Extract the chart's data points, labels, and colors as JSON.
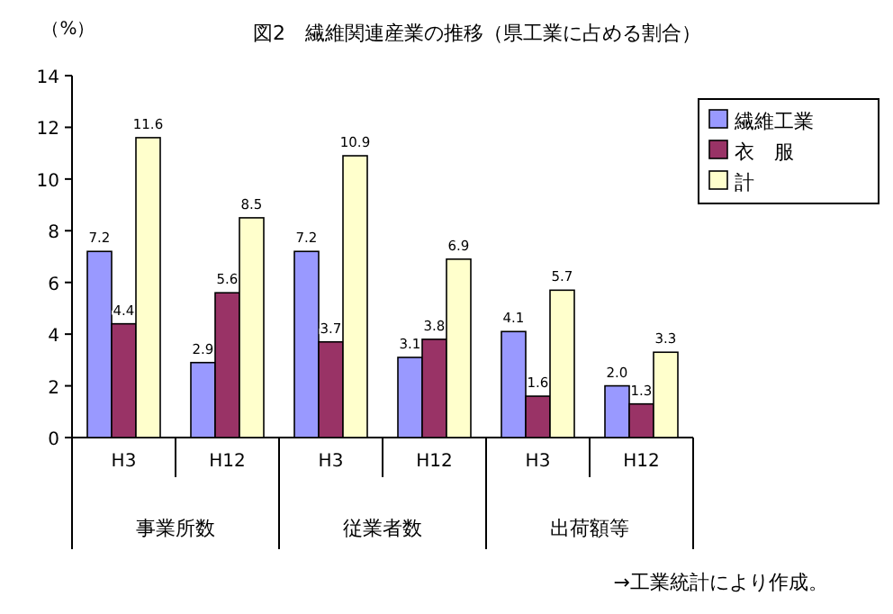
{
  "chart_data": {
    "type": "bar",
    "title": "図2　繊維関連産業の推移（県工業に占める割合）",
    "ylabel": "（%）",
    "categories": [
      "H3",
      "H12",
      "H3",
      "H12",
      "H3",
      "H12"
    ],
    "series": [
      {
        "name": "繊維工業",
        "color": "#9999ff",
        "values": [
          7.2,
          2.9,
          7.2,
          3.1,
          4.1,
          2.0
        ],
        "value_labels": [
          "7.2",
          "2.9",
          "7.2",
          "3.1",
          "4.1",
          "2.0"
        ]
      },
      {
        "name": "衣　服",
        "color": "#993366",
        "values": [
          4.4,
          5.6,
          3.7,
          3.8,
          1.6,
          1.3
        ],
        "value_labels": [
          "4.4",
          "5.6",
          "3.7",
          "3.8",
          "1.6",
          "1.3"
        ]
      },
      {
        "name": "計",
        "color": "#ffffcc",
        "values": [
          11.6,
          8.5,
          10.9,
          6.9,
          5.7,
          3.3
        ],
        "value_labels": [
          "11.6",
          "8.5",
          "10.9",
          "6.9",
          "5.7",
          "3.3"
        ]
      }
    ],
    "ylim": [
      0,
      14
    ],
    "yticks": [
      0,
      2,
      4,
      6,
      8,
      10,
      12,
      14
    ],
    "legend": "top right",
    "grid": false,
    "annotations": [
      "事業所数",
      "従業者数",
      "出荷額等",
      "→工業統計により作成。"
    ]
  }
}
